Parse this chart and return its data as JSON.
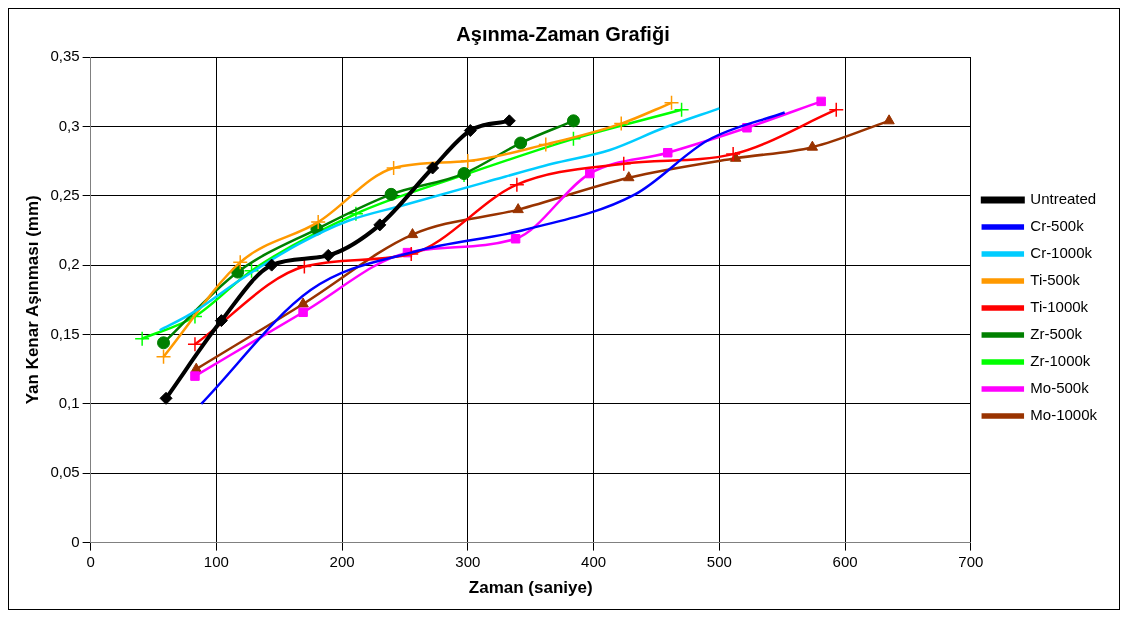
{
  "chart_data": {
    "type": "line",
    "title": "Aşınma-Zaman Grafiği",
    "xlabel": "Zaman (saniye)",
    "ylabel": "Yan Kenar Aşınması (mm)",
    "xlim": [
      0,
      700
    ],
    "xticks": [
      0,
      100,
      200,
      300,
      400,
      500,
      600,
      700
    ],
    "ylim": [
      0,
      0.35
    ],
    "yticks": [
      {
        "value": 0,
        "label": "0"
      },
      {
        "value": 0.05,
        "label": "0,05"
      },
      {
        "value": 0.1,
        "label": "0,1"
      },
      {
        "value": 0.15,
        "label": "0,15"
      },
      {
        "value": 0.2,
        "label": "0,2"
      },
      {
        "value": 0.25,
        "label": "0,25"
      },
      {
        "value": 0.3,
        "label": "0,3"
      },
      {
        "value": 0.35,
        "label": "0,35"
      }
    ],
    "grid": true,
    "legend": "right",
    "series": [
      {
        "name": "Untreated",
        "color": "#000000",
        "marker": "diamond",
        "x": [
          60,
          104,
          144,
          189,
          230,
          272,
          302,
          333
        ],
        "values": [
          0.104,
          0.16,
          0.2,
          0.207,
          0.229,
          0.27,
          0.297,
          0.304
        ]
      },
      {
        "name": "Cr-500k",
        "color": "#0000ff",
        "marker": "none",
        "x": [
          88,
          175,
          259,
          343,
          433,
          491,
          552
        ],
        "values": [
          0.1,
          0.182,
          0.21,
          0.225,
          0.251,
          0.29,
          0.31
        ]
      },
      {
        "name": "Cr-1000k",
        "color": "#00ccff",
        "marker": "none",
        "x": [
          55,
          80,
          120,
          165,
          205,
          248,
          315,
          367,
          413,
          456,
          500
        ],
        "values": [
          0.153,
          0.165,
          0.19,
          0.215,
          0.232,
          0.243,
          0.26,
          0.273,
          0.283,
          0.299,
          0.313
        ]
      },
      {
        "name": "Ti-500k",
        "color": "#ff9900",
        "marker": "cross",
        "x": [
          58,
          119,
          181,
          241,
          300,
          362,
          422,
          462
        ],
        "values": [
          0.134,
          0.202,
          0.231,
          0.27,
          0.275,
          0.287,
          0.302,
          0.317
        ]
      },
      {
        "name": "Ti-1000k",
        "color": "#ff0000",
        "marker": "cross",
        "x": [
          83,
          170,
          255,
          339,
          424,
          511,
          593
        ],
        "values": [
          0.143,
          0.199,
          0.208,
          0.258,
          0.273,
          0.28,
          0.312
        ]
      },
      {
        "name": "Zr-500k",
        "color": "#008000",
        "marker": "circle",
        "x": [
          58,
          117,
          180,
          239,
          297,
          342,
          384
        ],
        "values": [
          0.144,
          0.195,
          0.226,
          0.251,
          0.266,
          0.288,
          0.304
        ]
      },
      {
        "name": "Zr-1000k",
        "color": "#00ff00",
        "marker": "cross",
        "x": [
          41,
          83,
          128,
          211,
          297,
          384,
          470
        ],
        "values": [
          0.147,
          0.163,
          0.196,
          0.237,
          0.265,
          0.291,
          0.312
        ]
      },
      {
        "name": "Mo-500k",
        "color": "#ff00ff",
        "marker": "square",
        "x": [
          83,
          169,
          252,
          338,
          397,
          459,
          522,
          581
        ],
        "values": [
          0.12,
          0.166,
          0.209,
          0.219,
          0.266,
          0.281,
          0.299,
          0.318
        ]
      },
      {
        "name": "Mo-1000k",
        "color": "#993300",
        "marker": "triangle",
        "x": [
          84,
          169,
          256,
          340,
          428,
          513,
          574,
          635
        ],
        "values": [
          0.125,
          0.172,
          0.222,
          0.24,
          0.263,
          0.277,
          0.285,
          0.304
        ]
      }
    ]
  }
}
